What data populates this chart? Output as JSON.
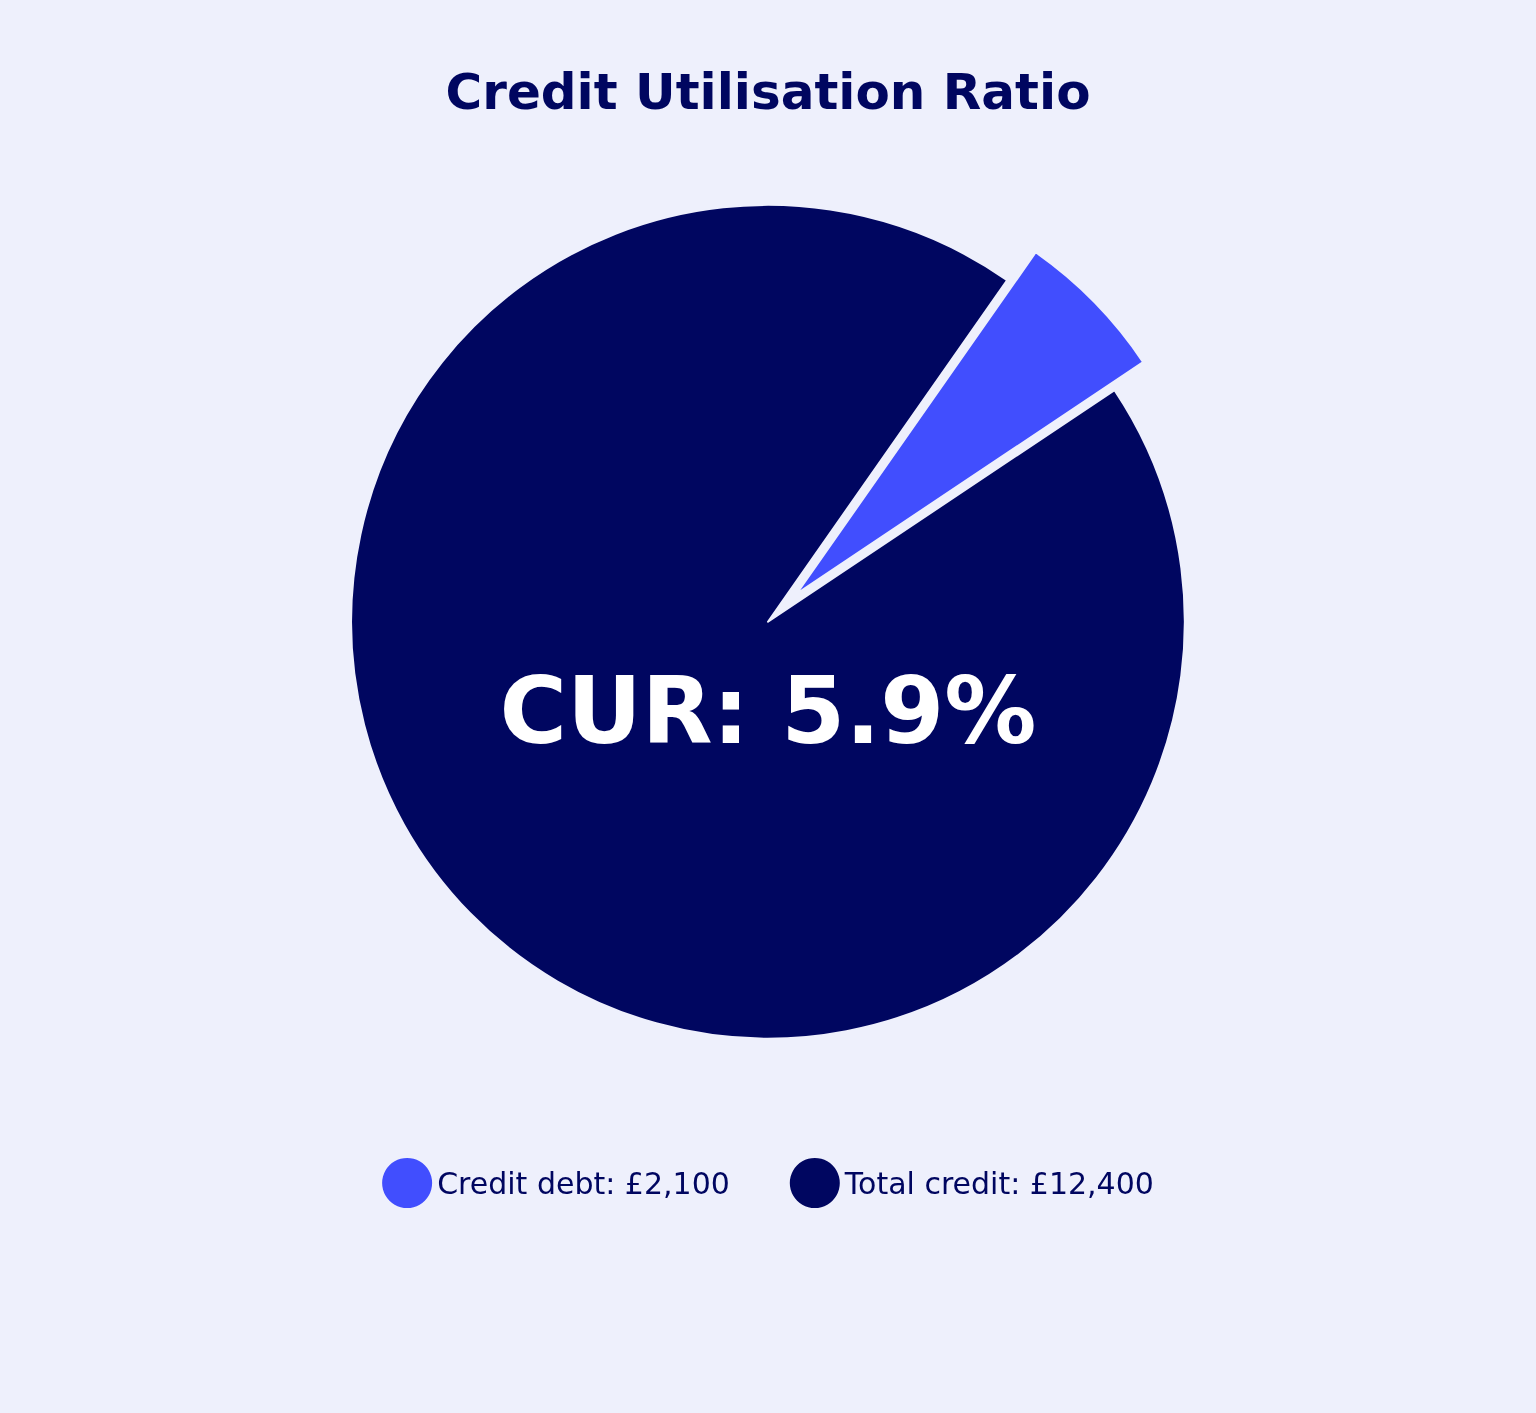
{
  "chart_data": {
    "type": "pie",
    "title": "Credit Utilisation Ratio",
    "categories": [
      "Credit debt: £2,100",
      "Total credit: £12,400"
    ],
    "values": [
      5.9,
      94.1
    ],
    "colors": [
      "#414efe",
      "#000660"
    ],
    "legend": "bottom",
    "annotations": [
      "CUR: 5.9%"
    ]
  }
}
